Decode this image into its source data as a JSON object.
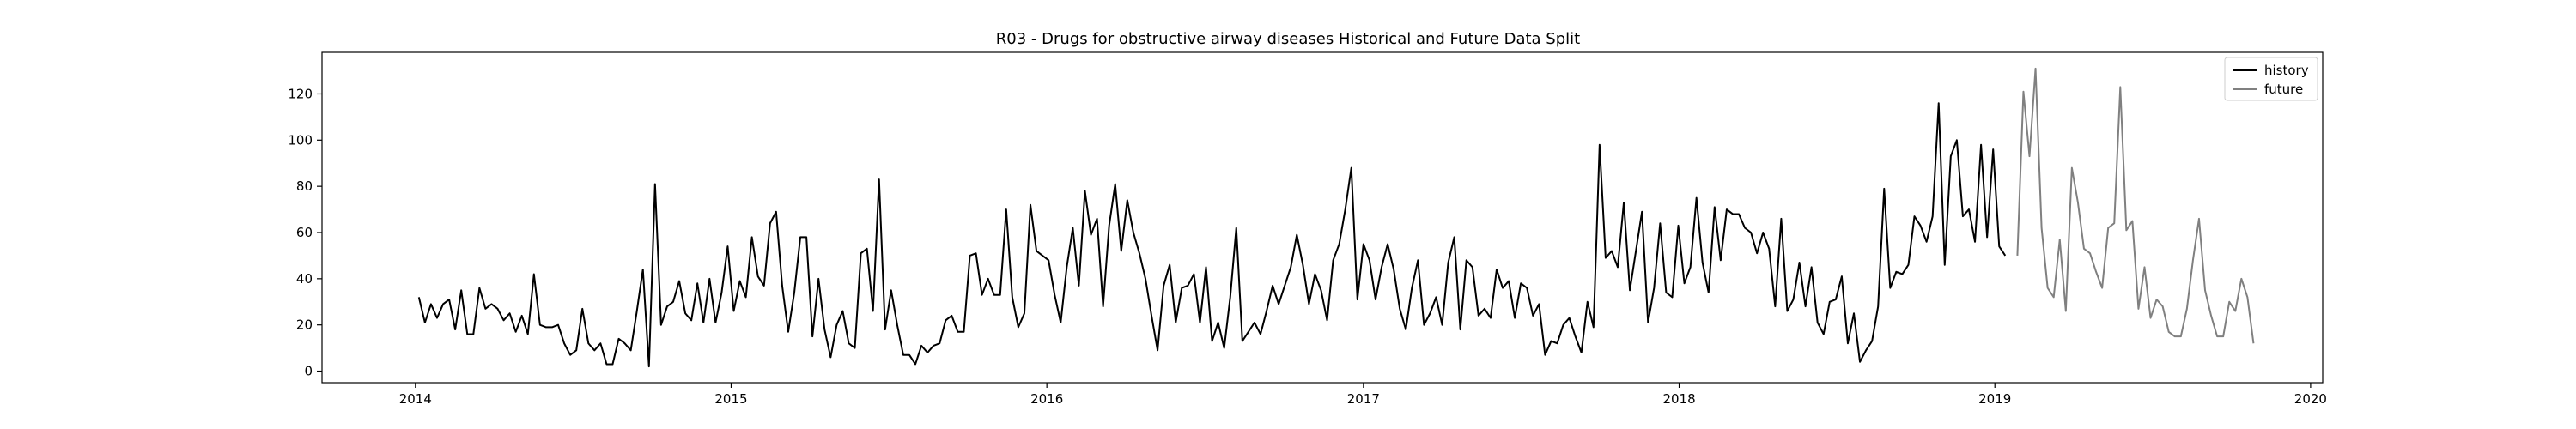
{
  "chart_data": {
    "type": "line",
    "title": "R03 - Drugs for obstructive airway diseases Historical and Future Data Split",
    "xlabel": "",
    "ylabel": "",
    "xlim": [
      "2013-09-15",
      "2020-01-15"
    ],
    "ylim": [
      -5,
      138
    ],
    "x_ticks": [
      "2014",
      "2015",
      "2016",
      "2017",
      "2018",
      "2019",
      "2020"
    ],
    "y_ticks": [
      0,
      20,
      40,
      60,
      80,
      100,
      120
    ],
    "grid": false,
    "legend_position": "top-right",
    "series": [
      {
        "name": "history",
        "color": "#000000",
        "start": "2014-01-05",
        "interval_days": 7,
        "values": [
          32,
          21,
          29,
          23,
          29,
          31,
          18,
          35,
          16,
          16,
          36,
          27,
          29,
          27,
          22,
          25,
          17,
          24,
          16,
          42,
          20,
          19,
          19,
          20,
          12,
          7,
          9,
          27,
          12,
          9,
          12,
          3,
          3,
          14,
          12,
          9,
          26,
          44,
          2,
          81,
          20,
          28,
          30,
          39,
          25,
          22,
          38,
          21,
          40,
          21,
          34,
          54,
          26,
          39,
          32,
          58,
          41,
          37,
          64,
          69,
          37,
          17,
          34,
          58,
          58,
          15,
          40,
          18,
          6,
          20,
          26,
          12,
          10,
          51,
          53,
          26,
          83,
          18,
          35,
          20,
          7,
          7,
          3,
          11,
          8,
          11,
          12,
          22,
          24,
          17,
          17,
          50,
          51,
          33,
          40,
          33,
          33,
          70,
          32,
          19,
          25,
          72,
          52,
          50,
          48,
          33,
          21,
          45,
          62,
          37,
          78,
          59,
          66,
          28,
          63,
          81,
          52,
          74,
          60,
          51,
          40,
          24,
          9,
          37,
          46,
          21,
          36,
          37,
          42,
          21,
          45,
          13,
          21,
          10,
          32,
          62,
          13,
          17,
          21,
          16,
          26,
          37,
          29,
          37,
          45,
          59,
          46,
          29,
          42,
          35,
          22,
          48,
          55,
          70,
          88,
          31,
          55,
          48,
          31,
          45,
          55,
          44,
          27,
          18,
          36,
          48,
          20,
          25,
          32,
          20,
          47,
          58,
          18,
          48,
          45,
          24,
          27,
          23,
          44,
          36,
          39,
          23,
          38,
          36,
          24,
          29,
          7,
          13,
          12,
          20,
          23,
          15,
          8,
          30,
          19,
          98,
          49,
          52,
          45,
          73,
          35,
          52,
          69,
          21,
          36,
          64,
          34,
          32,
          63,
          38,
          45,
          75,
          47,
          34,
          71,
          48,
          70,
          68,
          68,
          62,
          60,
          51,
          60,
          53,
          28,
          66,
          26,
          31,
          47,
          28,
          45,
          21,
          16,
          30,
          31,
          41,
          12,
          25,
          4,
          9,
          13,
          28,
          79,
          36,
          43,
          42,
          46,
          67,
          63,
          56,
          67,
          116,
          46,
          93,
          100,
          67,
          70,
          56,
          98,
          58,
          96,
          54,
          50
        ]
      },
      {
        "name": "future",
        "color": "#808080",
        "start": "2019-01-27",
        "interval_days": 7,
        "values": [
          50,
          121,
          93,
          131,
          62,
          36,
          32,
          57,
          26,
          88,
          73,
          53,
          51,
          43,
          36,
          62,
          64,
          123,
          61,
          65,
          27,
          45,
          23,
          31,
          28,
          17,
          15,
          15,
          27,
          48,
          66,
          35,
          24,
          15,
          15,
          30,
          26,
          40,
          32,
          12
        ]
      }
    ]
  }
}
